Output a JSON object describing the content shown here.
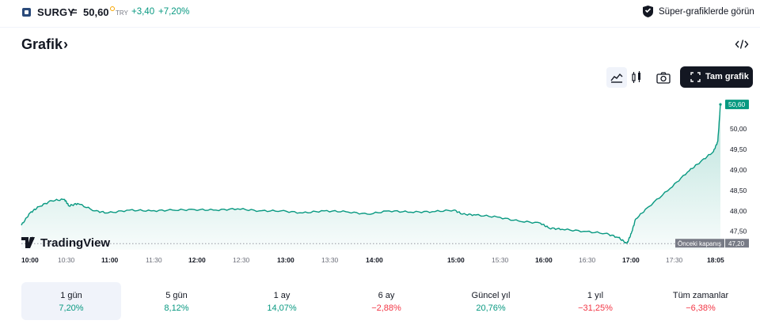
{
  "header": {
    "ticker": "SURGY",
    "eq": "=",
    "price": "50,60",
    "currency": "TRY",
    "change": "+3,40",
    "change_percent": "+7,20%",
    "super_chart_label": "Süper-grafiklerde görün"
  },
  "section": {
    "title": "Grafik",
    "chevron": "›"
  },
  "toolbar": {
    "full_chart_label": "Tam grafik"
  },
  "brand": {
    "label": "TradingView"
  },
  "colors": {
    "accent": "#089981",
    "negative": "#f23645",
    "dark": "#131722"
  },
  "chart_data": {
    "type": "area",
    "x_tick_labels": [
      "10:00",
      "10:30",
      "11:00",
      "11:30",
      "12:00",
      "12:30",
      "13:00",
      "13:30",
      "14:00",
      "15:00",
      "15:30",
      "16:00",
      "16:30",
      "17:00",
      "17:30",
      "18:05"
    ],
    "y_tick_labels": [
      "50,00",
      "49,50",
      "49,00",
      "48,50",
      "48,00",
      "47,50"
    ],
    "y_ticks": [
      50.0,
      49.5,
      49.0,
      48.5,
      48.0,
      47.5
    ],
    "ylim": [
      47.05,
      50.68
    ],
    "x_hours": [
      10.0,
      10.1,
      10.2,
      10.35,
      10.5,
      10.55,
      10.65,
      10.85,
      11.0,
      11.25,
      11.5,
      11.75,
      12.0,
      12.25,
      12.5,
      12.75,
      13.0,
      13.25,
      13.5,
      13.75,
      14.0,
      14.25,
      14.5,
      14.75,
      15.0,
      15.1,
      15.25,
      15.5,
      15.75,
      16.0,
      16.1,
      16.25,
      16.5,
      16.75,
      16.9,
      17.0,
      17.05,
      17.1,
      17.25,
      17.5,
      17.7,
      17.85,
      18.0,
      18.05,
      18.08
    ],
    "values": [
      47.65,
      47.95,
      48.1,
      48.25,
      48.28,
      48.12,
      48.18,
      48.0,
      47.95,
      48.02,
      48.0,
      48.02,
      48.03,
      48.02,
      48.05,
      48.0,
      48.0,
      47.95,
      48.0,
      47.98,
      47.92,
      48.0,
      47.97,
      47.98,
      48.02,
      47.92,
      47.9,
      47.85,
      47.75,
      47.7,
      47.58,
      47.55,
      47.5,
      47.45,
      47.35,
      47.2,
      47.45,
      47.8,
      48.1,
      48.55,
      48.95,
      49.2,
      49.45,
      49.7,
      50.6
    ],
    "last_value_label": "50,60",
    "prev_close_label": "Önceki kapanış",
    "prev_close_value": 47.2,
    "prev_close_value_label": "47,20",
    "grid": false
  },
  "periods": [
    {
      "label": "1 gün",
      "value": "7,20%",
      "sign": "pos",
      "active": true
    },
    {
      "label": "5 gün",
      "value": "8,12%",
      "sign": "pos",
      "active": false
    },
    {
      "label": "1 ay",
      "value": "14,07%",
      "sign": "pos",
      "active": false
    },
    {
      "label": "6 ay",
      "value": "−2,88%",
      "sign": "neg",
      "active": false
    },
    {
      "label": "Güncel yıl",
      "value": "20,76%",
      "sign": "pos",
      "active": false
    },
    {
      "label": "1 yıl",
      "value": "−31,25%",
      "sign": "neg",
      "active": false
    },
    {
      "label": "Tüm zamanlar",
      "value": "−6,38%",
      "sign": "neg",
      "active": false
    }
  ]
}
